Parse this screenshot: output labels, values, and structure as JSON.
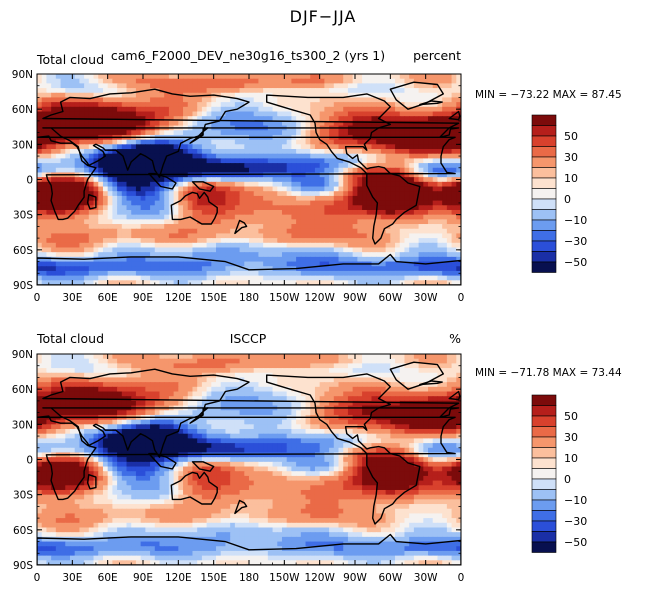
{
  "figure": {
    "title": "DJF−JJA"
  },
  "chart_data": [
    {
      "type": "heatmap",
      "title": "Total cloud",
      "dataset": "cam6_F2000_DEV_ne30g16_ts300_2 (yrs 1)",
      "units": "percent",
      "minmax": "MIN = −73.22 MAX =  87.45",
      "min": -73.22,
      "max": 87.45,
      "xlim": [
        0,
        360
      ],
      "ylim": [
        -90,
        90
      ],
      "x_ticks": [
        "0",
        "30E",
        "60E",
        "90E",
        "120E",
        "150E",
        "180",
        "150W",
        "120W",
        "90W",
        "60W",
        "30W",
        "0"
      ],
      "y_ticks": [
        "90N",
        "60N",
        "30N",
        "0",
        "30S",
        "60S",
        "90S"
      ]
    },
    {
      "type": "heatmap",
      "title": "Total cloud",
      "dataset": "ISCCP",
      "units": "%",
      "minmax": "MIN = −71.78 MAX =  73.44",
      "min": -71.78,
      "max": 73.44,
      "xlim": [
        0,
        360
      ],
      "ylim": [
        -90,
        90
      ],
      "x_ticks": [
        "0",
        "30E",
        "60E",
        "90E",
        "120E",
        "150E",
        "180",
        "150W",
        "120W",
        "90W",
        "60W",
        "30W",
        "0"
      ],
      "y_ticks": [
        "90N",
        "60N",
        "30N",
        "0",
        "30S",
        "60S",
        "90S"
      ]
    }
  ],
  "colorbar": {
    "levels": [
      -60,
      -50,
      -40,
      -30,
      -20,
      -10,
      -5,
      0,
      5,
      10,
      20,
      30,
      40,
      50,
      60
    ],
    "labels": [
      "50",
      "30",
      "10",
      "0",
      "−10",
      "−30",
      "−50"
    ],
    "colors": [
      "#08104f",
      "#1a2fa6",
      "#2b4fd9",
      "#3f6ee6",
      "#6c9cf0",
      "#9dc1f5",
      "#cfe0f8",
      "#f5f2f0",
      "#fde2cf",
      "#fbbf9d",
      "#f5966c",
      "#ea6a47",
      "#d8412d",
      "#b51f1b",
      "#7c0b0b"
    ]
  }
}
